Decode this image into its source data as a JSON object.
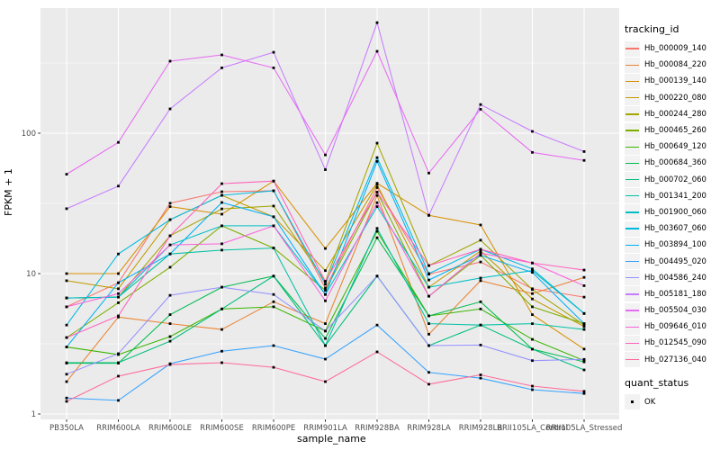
{
  "chart_data": {
    "type": "line",
    "title": "",
    "xlabel": "sample_name",
    "ylabel": "FPKM + 1",
    "y_scale": "log10",
    "ylim": [
      1,
      780
    ],
    "y_major_ticks": [
      1,
      10,
      100
    ],
    "y_tick_labels": [
      "1",
      "10",
      "100"
    ],
    "grid": "on",
    "panel_background": "#EBEBEB",
    "grid_color": "#FFFFFF",
    "point_shape": "black-square",
    "legend": {
      "position": "right",
      "tracking_title": "tracking_id",
      "quant_title": "quant_status",
      "quant_value": "OK"
    },
    "categories": [
      "PB350LA",
      "RRIM600LA",
      "RRIM600LE",
      "RRIM600SE",
      "RRIM600PE",
      "RRIM901LA",
      "RRIM928BA",
      "RRIM928LA",
      "RRIM928LB",
      "RRII105LA_Control",
      "RRII105LA_Stressed"
    ],
    "series": [
      {
        "name": "Hb_000009_140",
        "color": "#F8766D",
        "values": [
          5.8,
          8.6,
          31.7,
          38.3,
          38.9,
          7.9,
          41,
          9.9,
          12.1,
          7.8,
          6.8
        ]
      },
      {
        "name": "Hb_000084_220",
        "color": "#EA8331",
        "values": [
          1.7,
          4.9,
          4.4,
          4.0,
          6.3,
          4.4,
          36,
          3.7,
          8.9,
          7.2,
          9.4
        ]
      },
      {
        "name": "Hb_000139_140",
        "color": "#D89000",
        "values": [
          10,
          10,
          30,
          26.5,
          45.6,
          15.1,
          44,
          26,
          22.2,
          5.1,
          2.9
        ]
      },
      {
        "name": "Hb_000220_080",
        "color": "#C09B00",
        "values": [
          8.9,
          7.8,
          24.2,
          36.1,
          25.4,
          10.5,
          43,
          8.0,
          14.5,
          6.6,
          4.2
        ]
      },
      {
        "name": "Hb_000244_280",
        "color": "#A3A500",
        "values": [
          6.7,
          6.8,
          18.6,
          28.9,
          30.3,
          8.8,
          85,
          11.4,
          17.3,
          7.7,
          4.3
        ]
      },
      {
        "name": "Hb_000465_260",
        "color": "#7CAE00",
        "values": [
          3.5,
          6.2,
          11.1,
          21.9,
          15.2,
          7.6,
          38,
          6.9,
          13.5,
          5.8,
          4.4
        ]
      },
      {
        "name": "Hb_000649_120",
        "color": "#39B600",
        "values": [
          3.0,
          2.65,
          3.56,
          5.6,
          5.8,
          3.9,
          20,
          5.0,
          5.6,
          3.4,
          2.4
        ]
      },
      {
        "name": "Hb_000684_360",
        "color": "#00BB4E",
        "values": [
          2.3,
          2.3,
          5.1,
          8.0,
          9.6,
          3.45,
          18,
          5.0,
          6.3,
          2.9,
          2.35
        ]
      },
      {
        "name": "Hb_000702_060",
        "color": "#00BF7D",
        "values": [
          2.32,
          2.32,
          3.3,
          5.6,
          9.6,
          3.07,
          9.6,
          3.07,
          4.3,
          2.9,
          2.06
        ]
      },
      {
        "name": "Hb_001341_200",
        "color": "#00C1A3",
        "values": [
          6.7,
          6.8,
          13.8,
          14.7,
          15.2,
          3.07,
          21,
          4.4,
          4.3,
          4.4,
          4.0
        ]
      },
      {
        "name": "Hb_001900_060",
        "color": "#00BFC4",
        "values": [
          6.7,
          6.8,
          16,
          21.9,
          21.9,
          7.1,
          30,
          8.0,
          9.3,
          10.5,
          5.2
        ]
      },
      {
        "name": "Hb_003607_060",
        "color": "#00BAE0",
        "values": [
          4.3,
          13.8,
          24.2,
          36.1,
          38.9,
          8.4,
          67,
          10.0,
          14.9,
          10.8,
          5.2
        ]
      },
      {
        "name": "Hb_003894_100",
        "color": "#00B0F6",
        "values": [
          3.0,
          8.6,
          13.8,
          32.1,
          25.4,
          7.1,
          63,
          9.0,
          13.5,
          10.2,
          4.4
        ]
      },
      {
        "name": "Hb_004495_020",
        "color": "#35A2FF",
        "values": [
          1.3,
          1.25,
          2.28,
          2.8,
          3.07,
          2.46,
          4.3,
          1.98,
          1.8,
          1.49,
          1.4
        ]
      },
      {
        "name": "Hb_004586_240",
        "color": "#9590FF",
        "values": [
          1.92,
          2.69,
          7.0,
          8.0,
          7.1,
          3.9,
          9.6,
          3.07,
          3.1,
          2.4,
          2.45
        ]
      },
      {
        "name": "Hb_005181_180",
        "color": "#C77CFF",
        "values": [
          29,
          42,
          149,
          292,
          377,
          55,
          613,
          26,
          160,
          103,
          74
        ]
      },
      {
        "name": "Hb_005504_030",
        "color": "#E76BF3",
        "values": [
          51,
          86,
          326,
          361,
          292,
          70,
          383,
          52,
          148,
          73,
          64
        ]
      },
      {
        "name": "Hb_009646_010",
        "color": "#FA62DB",
        "values": [
          5.8,
          7.2,
          16,
          16.3,
          21.9,
          6.4,
          32,
          6.9,
          14.0,
          11.9,
          8.2
        ]
      },
      {
        "name": "Hb_012545_090",
        "color": "#FF62BC",
        "values": [
          3.5,
          5.0,
          18.6,
          43.7,
          45.6,
          8.8,
          38,
          11.4,
          14.9,
          11.9,
          10.6
        ]
      },
      {
        "name": "Hb_027136_040",
        "color": "#FF6A98",
        "values": [
          1.23,
          1.86,
          2.25,
          2.32,
          2.15,
          1.7,
          2.77,
          1.63,
          1.9,
          1.58,
          1.45
        ]
      }
    ]
  }
}
